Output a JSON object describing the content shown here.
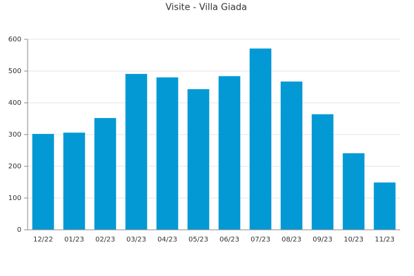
{
  "chart_data": {
    "type": "bar",
    "title": "Visite - Villa Giada",
    "categories": [
      "12/22",
      "01/23",
      "02/23",
      "03/23",
      "04/23",
      "05/23",
      "06/23",
      "07/23",
      "08/23",
      "09/23",
      "10/23",
      "11/23"
    ],
    "values": [
      302,
      306,
      352,
      491,
      480,
      443,
      484,
      571,
      467,
      364,
      241,
      149
    ],
    "color": "#0399d5",
    "ylim": [
      0,
      600
    ],
    "yticks": [
      0,
      100,
      200,
      300,
      400,
      500,
      600
    ],
    "grid": true
  }
}
